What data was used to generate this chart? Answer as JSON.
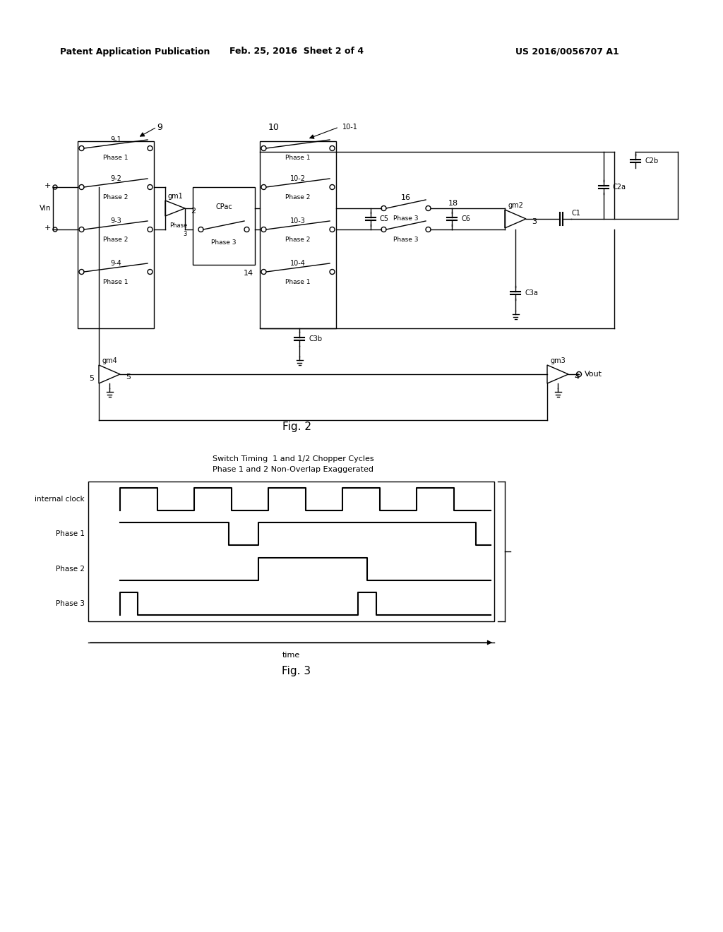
{
  "header_left": "Patent Application Publication",
  "header_center": "Feb. 25, 2016  Sheet 2 of 4",
  "header_right": "US 2016/0056707 A1",
  "fig2_label": "Fig. 2",
  "fig3_label": "Fig. 3",
  "timing_title1": "Switch Timing  1 and 1/2 Chopper Cycles",
  "timing_title2": "Phase 1 and 2 Non-Overlap Exaggerated",
  "timing_xlabel": "time",
  "signals": [
    "internal clock",
    "Phase 1",
    "Phase 2",
    "Phase 3"
  ],
  "bg": "#ffffff"
}
